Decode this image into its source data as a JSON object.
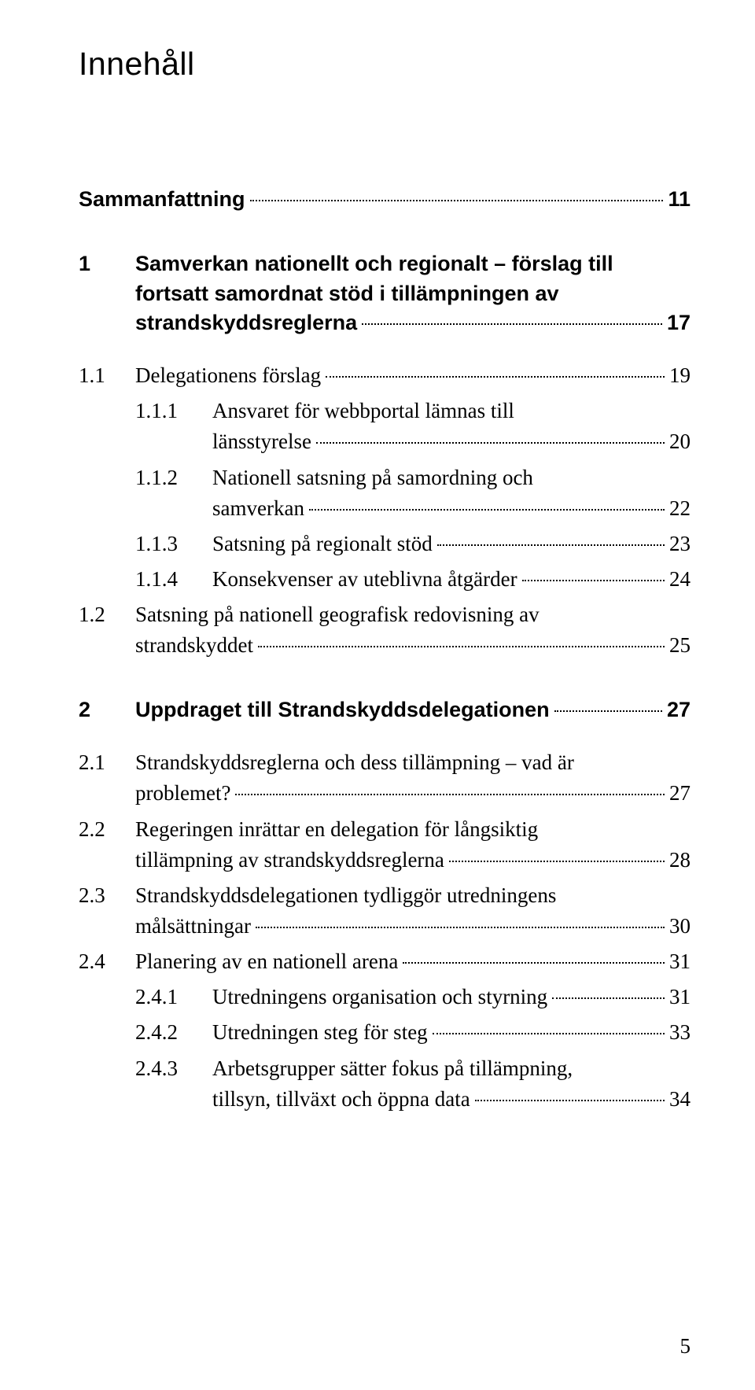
{
  "title": "Innehåll",
  "page_number": "5",
  "sections": [
    {
      "head": {
        "num": "",
        "label": "Sammanfattning",
        "page": "11"
      },
      "l1": []
    },
    {
      "head": {
        "num": "1",
        "label_lines": [
          "Samverkan nationellt och regionalt – förslag till",
          "fortsatt samordnat stöd i tillämpningen av",
          "strandskyddsreglerna"
        ],
        "page": "17"
      },
      "l1": [
        {
          "num": "1.1",
          "label": "Delegationens förslag",
          "page": "19",
          "l2": [
            {
              "num": "1.1.1",
              "label_lines": [
                "Ansvaret för webbportal lämnas till",
                "länsstyrelse"
              ],
              "page": "20"
            },
            {
              "num": "1.1.2",
              "label_lines": [
                "Nationell satsning på samordning och",
                "samverkan"
              ],
              "page": "22"
            },
            {
              "num": "1.1.3",
              "label": "Satsning på regionalt stöd",
              "page": "23"
            },
            {
              "num": "1.1.4",
              "label": "Konsekvenser av uteblivna åtgärder",
              "page": "24"
            }
          ]
        },
        {
          "num": "1.2",
          "label_lines": [
            "Satsning på nationell geografisk redovisning av",
            "strandskyddet"
          ],
          "page": "25",
          "l2": []
        }
      ]
    },
    {
      "head": {
        "num": "2",
        "label": "Uppdraget till Strandskyddsdelegationen",
        "page": "27"
      },
      "l1": [
        {
          "num": "2.1",
          "label_lines": [
            "Strandskyddsreglerna och dess tillämpning – vad är",
            "problemet?"
          ],
          "page": "27",
          "l2": []
        },
        {
          "num": "2.2",
          "label_lines": [
            "Regeringen inrättar en delegation för långsiktig",
            "tillämpning av strandskyddsreglerna"
          ],
          "page": "28",
          "l2": []
        },
        {
          "num": "2.3",
          "label_lines": [
            "Strandskyddsdelegationen tydliggör utredningens",
            "målsättningar"
          ],
          "page": "30",
          "l2": []
        },
        {
          "num": "2.4",
          "label": "Planering av en nationell arena",
          "page": "31",
          "l2": [
            {
              "num": "2.4.1",
              "label": "Utredningens organisation och styrning",
              "page": "31"
            },
            {
              "num": "2.4.2",
              "label": "Utredningen steg för steg",
              "page": "33"
            },
            {
              "num": "2.4.3",
              "label_lines": [
                "Arbetsgrupper sätter fokus på tillämpning,",
                "tillsyn, tillväxt och öppna data"
              ],
              "page": "34"
            }
          ]
        }
      ]
    }
  ]
}
